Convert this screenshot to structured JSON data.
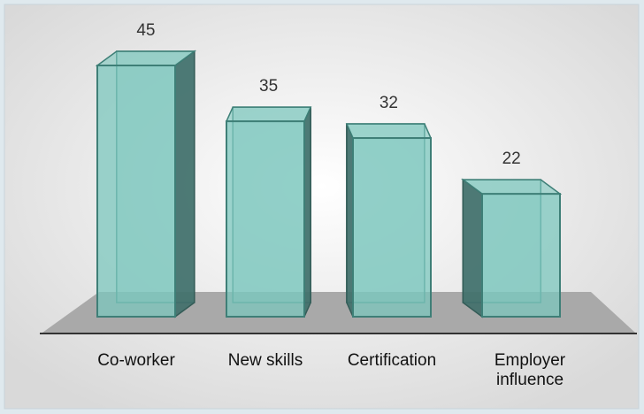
{
  "chart_data": {
    "type": "bar",
    "categories": [
      "Co-worker",
      "New skills",
      "Certification",
      "Employer influence"
    ],
    "values": [
      45,
      35,
      32,
      22
    ],
    "color": "#7cc7bd"
  }
}
